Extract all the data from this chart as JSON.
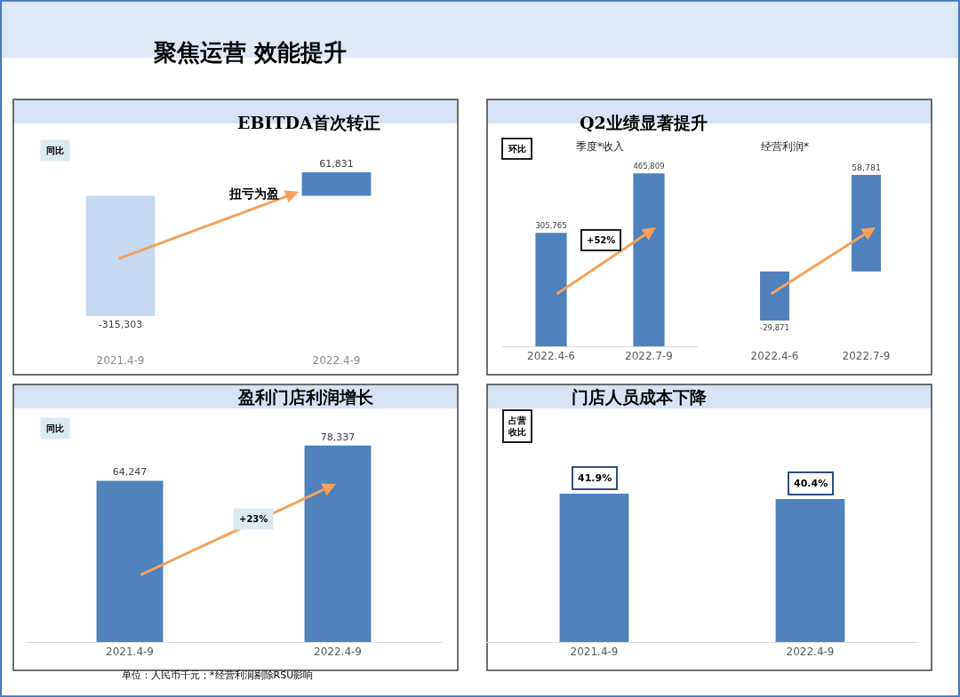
{
  "chart_data": [
    {
      "type": "bar",
      "title": "EBITDA首次转正",
      "categories": [
        "2021.4-9",
        "2022.4-9"
      ],
      "values": [
        -315303,
        61831
      ],
      "value_labels": [
        "-315,303",
        "61,831"
      ],
      "colors": [
        "#c6d9f0",
        "#4f81bd"
      ],
      "tick_labels": "x",
      "annotations": [
        "同比",
        "扭亏为盈",
        "聚焦运营 效能提升",
        "单位：人民币千元；*经营利润剔除RSU影响"
      ]
    },
    {
      "type": "bar",
      "title": "Q2业绩显著提升",
      "subtitle": "季度*收入",
      "categories": [
        "2022.4-6",
        "2022.7-9"
      ],
      "values": [
        305765,
        465809
      ],
      "value_labels": [
        "305,765",
        "465,809"
      ],
      "colors": [
        "#4f81bd",
        "#4f81bd"
      ],
      "tick_labels": "x",
      "annotations": [
        "环比",
        "+52%"
      ]
    },
    {
      "type": "bar",
      "subtitle": "经营利润*",
      "categories": [
        "2022.4-6",
        "2022.7-9"
      ],
      "values": [
        -29871,
        58781
      ],
      "value_labels": [
        "-29,871",
        "58,781"
      ],
      "colors": [
        "#4f81bd",
        "#4f81bd"
      ],
      "tick_labels": "x"
    },
    {
      "type": "bar",
      "title": "盈利门店利润增长",
      "categories": [
        "2021.4-9",
        "2022.4-9"
      ],
      "values": [
        64247,
        78337
      ],
      "value_labels": [
        "64,247",
        "78,337"
      ],
      "colors": [
        "#4f81bd",
        "#4f81bd"
      ],
      "tick_labels": "x",
      "annotations": [
        "同比",
        "+23%"
      ]
    },
    {
      "type": "bar",
      "title": "门店人员成本下降",
      "categories": [
        "2021.4-9",
        "2022.4-9"
      ],
      "values": [
        41.9,
        40.4
      ],
      "value_labels": [
        "41.9%",
        "40.4%"
      ],
      "colors": [
        "#4f81bd",
        "#4f81bd"
      ],
      "tick_labels": "x",
      "annotations": [
        "占营收比"
      ]
    }
  ]
}
